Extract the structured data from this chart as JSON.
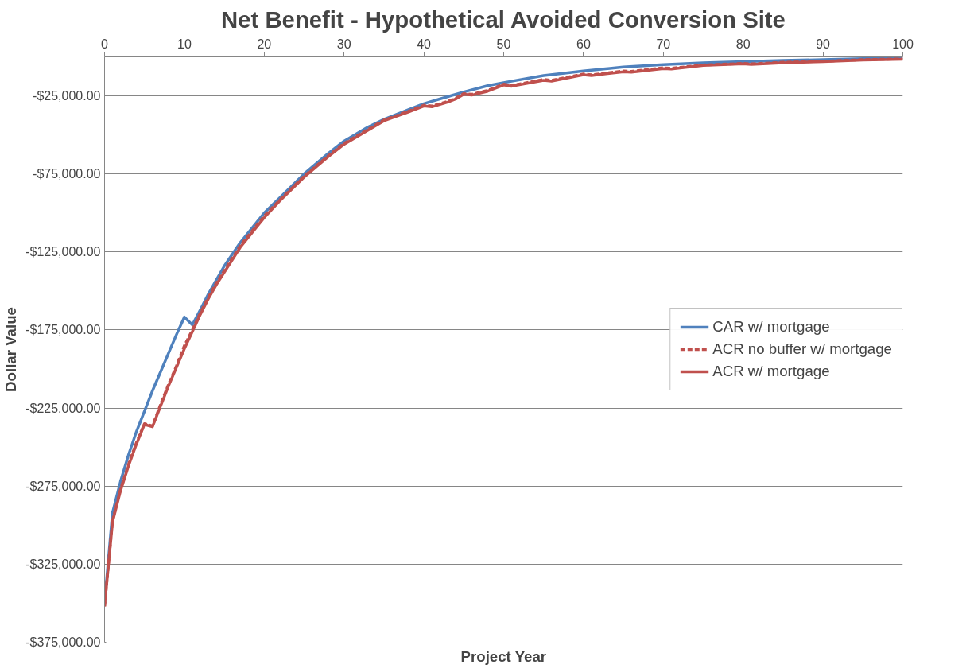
{
  "chart_data": {
    "type": "line",
    "title": "Net Benefit - Hypothetical Avoided Conversion Site",
    "xlabel": "Project Year",
    "ylabel": "Dollar Value",
    "xlim": [
      0,
      100
    ],
    "xticks": [
      0,
      10,
      20,
      30,
      40,
      50,
      60,
      70,
      80,
      90,
      100
    ],
    "ylim": [
      -375000,
      0
    ],
    "yticks": [
      {
        "value": -375000,
        "label": "-$375,000.00"
      },
      {
        "value": -325000,
        "label": "-$325,000.00"
      },
      {
        "value": -275000,
        "label": "-$275,000.00"
      },
      {
        "value": -225000,
        "label": "-$225,000.00"
      },
      {
        "value": -175000,
        "label": "-$175,000.00"
      },
      {
        "value": -125000,
        "label": "-$125,000.00"
      },
      {
        "value": -75000,
        "label": "-$75,000.00"
      },
      {
        "value": -25000,
        "label": "-$25,000.00"
      }
    ],
    "grid": "y",
    "legend": "right",
    "marker": "none",
    "series": [
      {
        "name": "CAR w/ mortgage",
        "color": "#4f81bd",
        "line_style": "solid",
        "x": [
          0,
          1,
          2,
          3,
          4,
          5,
          6,
          7,
          8,
          9,
          10,
          11,
          12,
          13,
          14,
          15,
          17,
          20,
          22,
          25,
          28,
          30,
          33,
          35,
          38,
          40,
          43,
          45,
          48,
          50,
          55,
          60,
          65,
          70,
          75,
          80,
          85,
          90,
          95,
          100
        ],
        "values": [
          -350000,
          -292000,
          -272000,
          -255000,
          -240000,
          -227000,
          -214000,
          -202000,
          -190000,
          -178000,
          -166700,
          -171700,
          -162000,
          -152000,
          -143000,
          -134000,
          -119000,
          -100000,
          -90000,
          -75000,
          -62000,
          -54000,
          -45000,
          -40000,
          -34000,
          -30000,
          -25500,
          -22500,
          -18500,
          -16500,
          -12000,
          -9000,
          -6500,
          -5000,
          -3800,
          -3000,
          -2300,
          -1800,
          -1200,
          -600
        ]
      },
      {
        "name": "ACR no buffer w/ mortgage",
        "color": "#c0504d",
        "line_style": "dashed",
        "x": [
          0,
          1,
          2,
          3,
          4,
          5,
          6,
          7,
          8,
          9,
          10,
          11,
          12,
          13,
          14,
          15,
          17,
          20,
          22,
          25,
          28,
          30,
          33,
          35,
          38,
          40,
          41,
          43,
          44,
          45,
          46,
          48,
          50,
          51,
          55,
          56,
          60,
          61,
          65,
          66,
          70,
          71,
          75,
          80,
          81,
          85,
          90,
          95,
          100
        ],
        "values": [
          -352000,
          -297000,
          -277000,
          -261000,
          -247000,
          -235000,
          -236500,
          -223000,
          -210000,
          -198000,
          -185000,
          -175000,
          -164000,
          -154000,
          -145000,
          -137000,
          -121000,
          -102000,
          -91500,
          -76500,
          -63500,
          -55500,
          -46500,
          -40500,
          -35000,
          -31000,
          -31500,
          -28500,
          -26500,
          -23500,
          -24000,
          -21500,
          -17500,
          -18300,
          -14500,
          -15000,
          -11000,
          -11500,
          -9000,
          -9300,
          -7000,
          -7300,
          -5200,
          -4200,
          -4500,
          -3500,
          -2800,
          -1800,
          -1300
        ]
      },
      {
        "name": "ACR w/ mortgage",
        "color": "#c0504d",
        "line_style": "solid",
        "x": [
          0,
          1,
          2,
          3,
          4,
          5,
          6,
          7,
          8,
          9,
          10,
          11,
          12,
          13,
          14,
          15,
          17,
          20,
          22,
          25,
          28,
          30,
          33,
          35,
          38,
          40,
          41,
          43,
          44,
          45,
          46,
          48,
          50,
          51,
          55,
          56,
          60,
          61,
          65,
          66,
          70,
          71,
          75,
          80,
          81,
          85,
          90,
          95,
          100
        ],
        "values": [
          -352000,
          -298000,
          -278000,
          -262000,
          -248000,
          -235500,
          -237000,
          -224000,
          -211000,
          -199000,
          -187000,
          -176000,
          -165000,
          -155000,
          -146000,
          -138000,
          -122000,
          -103000,
          -92000,
          -77000,
          -64000,
          -56000,
          -47000,
          -41000,
          -35500,
          -31500,
          -32000,
          -29000,
          -27000,
          -24000,
          -24500,
          -22000,
          -18000,
          -18800,
          -15000,
          -15500,
          -11500,
          -12000,
          -9500,
          -9800,
          -7500,
          -7800,
          -5500,
          -4500,
          -4800,
          -3800,
          -3000,
          -2000,
          -1500
        ]
      }
    ]
  }
}
